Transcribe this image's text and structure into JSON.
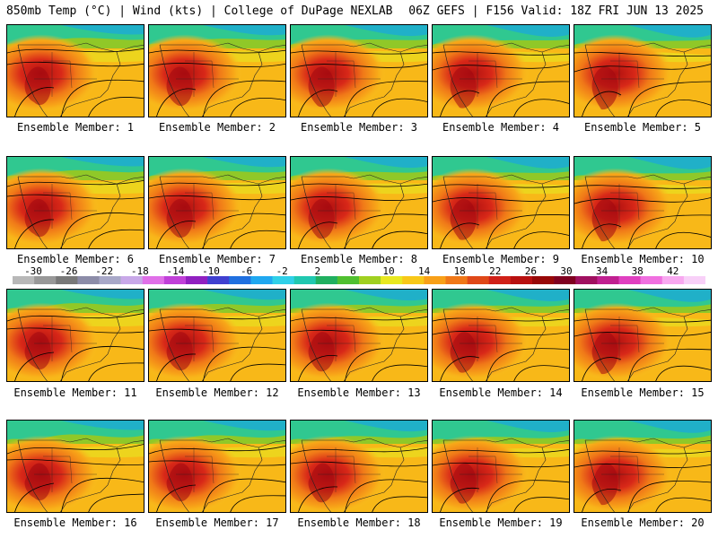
{
  "header": {
    "title_left": "850mb Temp (°C) | Wind (kts) | College of DuPage NEXLAB",
    "title_right": "06Z GEFS | F156 Valid: 18Z FRI JUN 13 2025"
  },
  "panels": [
    {
      "caption": "Ensemble Member: 1"
    },
    {
      "caption": "Ensemble Member: 2"
    },
    {
      "caption": "Ensemble Member: 3"
    },
    {
      "caption": "Ensemble Member: 4"
    },
    {
      "caption": "Ensemble Member: 5"
    },
    {
      "caption": "Ensemble Member: 6"
    },
    {
      "caption": "Ensemble Member: 7"
    },
    {
      "caption": "Ensemble Member: 8"
    },
    {
      "caption": "Ensemble Member: 9"
    },
    {
      "caption": "Ensemble Member: 10"
    },
    {
      "caption": "Ensemble Member: 11"
    },
    {
      "caption": "Ensemble Member: 12"
    },
    {
      "caption": "Ensemble Member: 13"
    },
    {
      "caption": "Ensemble Member: 14"
    },
    {
      "caption": "Ensemble Member: 15"
    },
    {
      "caption": "Ensemble Member: 16"
    },
    {
      "caption": "Ensemble Member: 17"
    },
    {
      "caption": "Ensemble Member: 18"
    },
    {
      "caption": "Ensemble Member: 19"
    },
    {
      "caption": "Ensemble Member: 20"
    }
  ],
  "colorbar": {
    "labels": [
      "-30",
      "-26",
      "-22",
      "-18",
      "-14",
      "-10",
      "-6",
      "-2",
      "2",
      "6",
      "10",
      "14",
      "18",
      "22",
      "26",
      "30",
      "34",
      "38",
      "42"
    ],
    "colors": [
      "#b8b8b8",
      "#989898",
      "#787878",
      "#8c8ca8",
      "#a8a8c8",
      "#c8a8e8",
      "#e070e8",
      "#c040d8",
      "#9020c0",
      "#4040d0",
      "#2070e0",
      "#20a8f0",
      "#30d0e8",
      "#20c8b0",
      "#20b060",
      "#50c030",
      "#a0d020",
      "#e8e820",
      "#f8c818",
      "#f8a018",
      "#f07818",
      "#e04818",
      "#d02018",
      "#b81010",
      "#980808",
      "#800020",
      "#a01060",
      "#c02090",
      "#e040c0",
      "#f070e0",
      "#f8a8f0",
      "#f8d0f8"
    ]
  }
}
